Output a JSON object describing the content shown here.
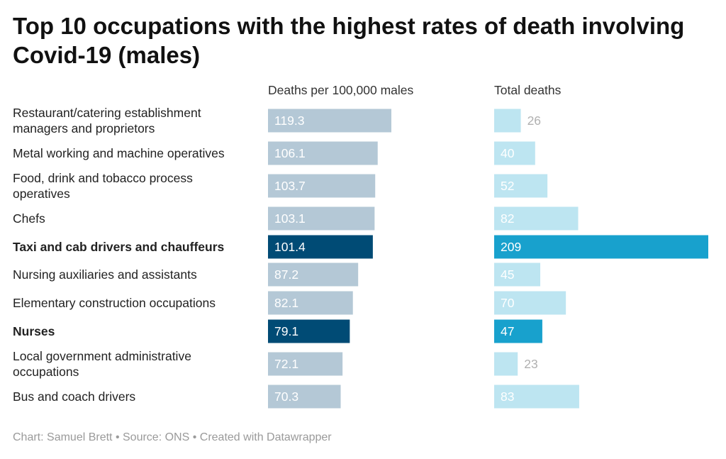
{
  "title": "Top 10 occupations with the highest rates of death involving Covid-19 (males)",
  "headers": {
    "rate": "Deaths per 100,000 males",
    "total": "Total deaths"
  },
  "footer": {
    "chart_by": "Chart: Samuel Brett",
    "source": "Source: ONS",
    "created": "Created with Datawrapper",
    "separator": " • "
  },
  "colors": {
    "rate_default": "#b4c8d6",
    "rate_highlight": "#004b75",
    "total_default": "#bde5f1",
    "total_highlight": "#18a1cd",
    "label_inside": "#ffffff",
    "label_outside": "#b0b0b0"
  },
  "chart_data": {
    "type": "bar",
    "orientation": "horizontal",
    "categories": [
      "Restaurant/catering establishment managers and proprietors",
      "Metal working and machine operatives",
      "Food, drink and tobacco process operatives",
      "Chefs",
      "Taxi and cab drivers and chauffeurs",
      "Nursing auxiliaries and assistants",
      "Elementary construction occupations",
      "Nurses",
      "Local government administrative occupations",
      "Bus and coach drivers"
    ],
    "category_lines": [
      [
        "Restaurant/catering establishment",
        "managers and proprietors"
      ],
      [
        "Metal working and machine operatives"
      ],
      [
        "Food, drink and tobacco process",
        "operatives"
      ],
      [
        "Chefs"
      ],
      [
        "Taxi and cab drivers and chauffeurs"
      ],
      [
        "Nursing auxiliaries and assistants"
      ],
      [
        "Elementary construction occupations"
      ],
      [
        "Nurses"
      ],
      [
        "Local government administrative",
        "occupations"
      ],
      [
        "Bus and coach drivers"
      ]
    ],
    "highlighted": [
      false,
      false,
      false,
      false,
      true,
      false,
      false,
      true,
      false,
      false
    ],
    "series": [
      {
        "name": "Deaths per 100,000 males",
        "values": [
          119.3,
          106.1,
          103.7,
          103.1,
          101.4,
          87.2,
          82.1,
          79.1,
          72.1,
          70.3
        ]
      },
      {
        "name": "Total deaths",
        "values": [
          26,
          40,
          52,
          82,
          209,
          45,
          70,
          47,
          23,
          83
        ]
      }
    ],
    "xlim_rate": [
      0,
      120
    ],
    "xlim_total": [
      0,
      209
    ]
  }
}
